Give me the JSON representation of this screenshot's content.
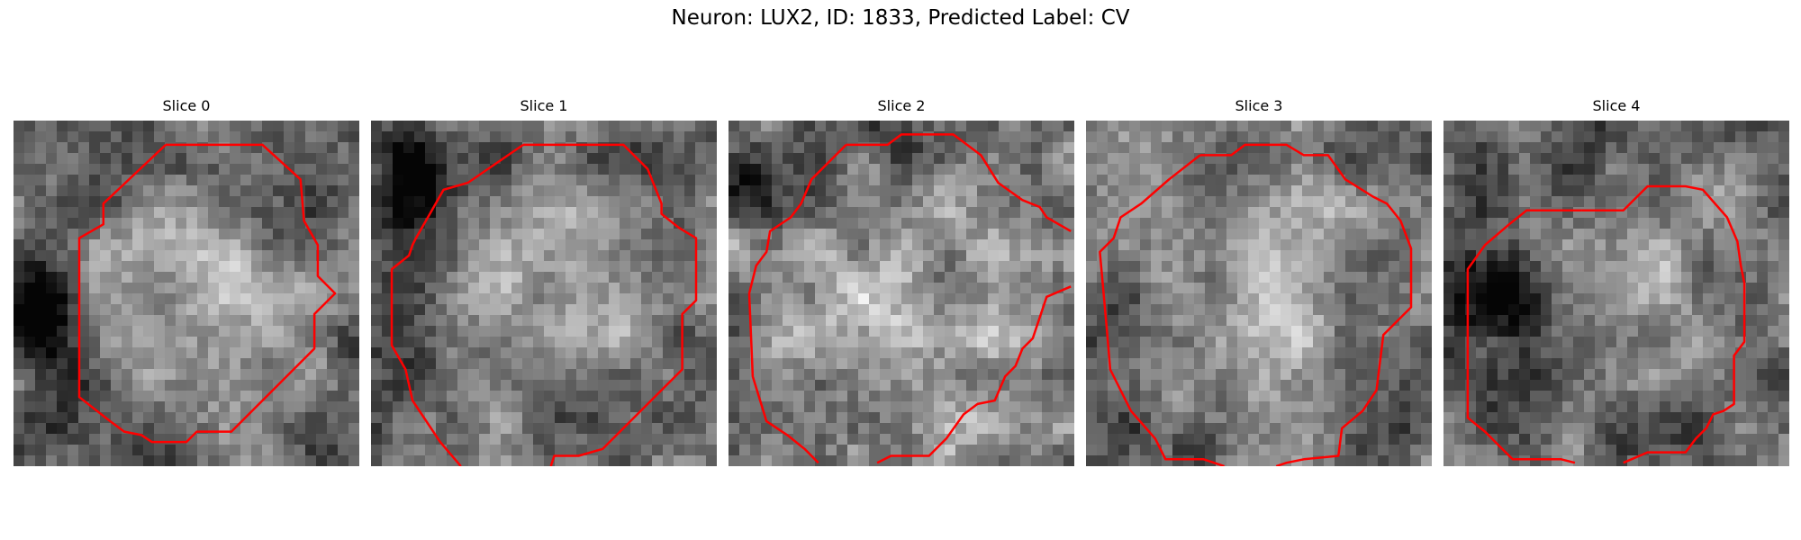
{
  "figure": {
    "title": "Neuron: LUX2, ID: 1833, Predicted Label: CV"
  },
  "colors": {
    "contour": "#ff0000",
    "background": "#ffffff"
  },
  "panels": [
    {
      "title": "Slice 0"
    },
    {
      "title": "Slice 1"
    },
    {
      "title": "Slice 2"
    },
    {
      "title": "Slice 3"
    },
    {
      "title": "Slice 4"
    }
  ]
}
